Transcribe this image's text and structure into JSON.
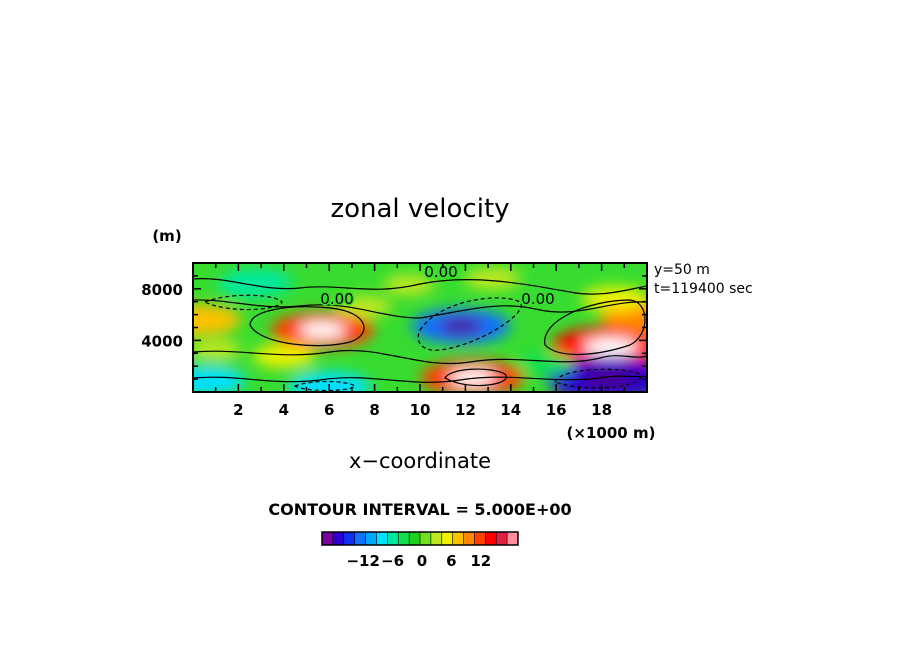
{
  "chart_data": {
    "type": "heatmap",
    "title": "zonal velocity",
    "xlabel": "x−coordinate",
    "xunit": "(×1000 m)",
    "yunit": "(m)",
    "xlim": [
      0,
      20
    ],
    "ylim": [
      0,
      10000
    ],
    "x_ticks": [
      2,
      4,
      6,
      8,
      10,
      12,
      14,
      16,
      18
    ],
    "y_ticks": [
      4000,
      8000
    ],
    "y_tick_labels": [
      "4000",
      "8000"
    ],
    "annotations": [
      "y=50 m",
      "t=119400 sec"
    ],
    "contour_labels": [
      "0.00",
      "0.00",
      "0.00"
    ],
    "contour_interval_text": "CONTOUR INTERVAL = 5.000E+00",
    "colorbar": {
      "tick_values": [
        -12,
        -6,
        0,
        6,
        12
      ],
      "tick_labels": [
        "−12",
        "−6",
        "0",
        "6",
        "12"
      ],
      "colors": [
        "#7a00a0",
        "#2a00d0",
        "#1030f0",
        "#1070ff",
        "#00a8ff",
        "#00e0ff",
        "#00e8a0",
        "#10e050",
        "#20d020",
        "#70e020",
        "#c0e820",
        "#f0f000",
        "#ffc000",
        "#ff8800",
        "#ff4000",
        "#ff0000",
        "#e02040",
        "#ff90a0"
      ]
    },
    "features": [
      {
        "x": 5.7,
        "y": 4800,
        "value": 13
      },
      {
        "x": 2.8,
        "y": 8500,
        "value": -7
      },
      {
        "x": 11.8,
        "y": 5100,
        "value": -12
      },
      {
        "x": 18.4,
        "y": 3500,
        "value": 16
      },
      {
        "x": 18.3,
        "y": 1000,
        "value": -17
      },
      {
        "x": 12.3,
        "y": 1100,
        "value": 13
      },
      {
        "x": 6.0,
        "y": 400,
        "value": -9
      },
      {
        "x": 0.6,
        "y": 900,
        "value": -8
      },
      {
        "x": 0.3,
        "y": 5600,
        "value": 9
      },
      {
        "x": 19.9,
        "y": 5800,
        "value": 10
      },
      {
        "x": 18.6,
        "y": 7200,
        "value": 6
      },
      {
        "x": 2.5,
        "y": 8200,
        "value": -5
      },
      {
        "x": 13.2,
        "y": 8800,
        "value": 4
      },
      {
        "x": 7.5,
        "y": 6600,
        "value": 4
      },
      {
        "x": 4.0,
        "y": 2800,
        "value": 5
      },
      {
        "x": 15.5,
        "y": 2200,
        "value": -4
      },
      {
        "x": 9.5,
        "y": 8300,
        "value": 3
      },
      {
        "x": 1.0,
        "y": 3300,
        "value": 3
      }
    ]
  }
}
